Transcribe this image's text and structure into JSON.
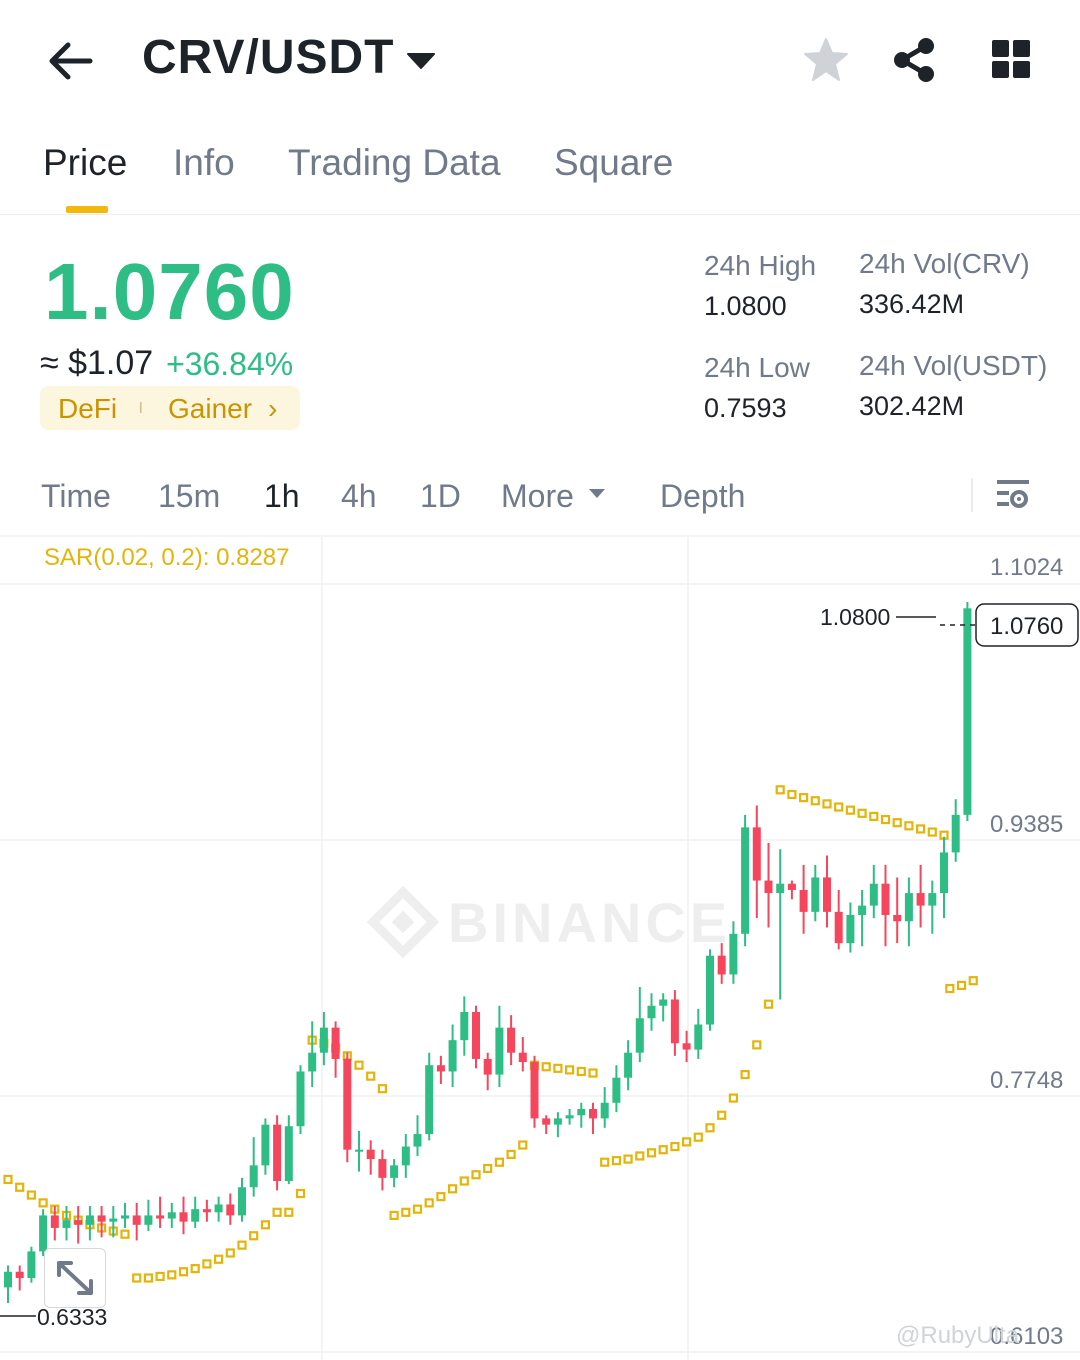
{
  "header": {
    "pair": "CRV/USDT",
    "icons": [
      "back-arrow-icon",
      "caret-down-icon",
      "star-icon",
      "share-icon",
      "grid-icon"
    ]
  },
  "tabs": [
    {
      "label": "Price",
      "active": true
    },
    {
      "label": "Info",
      "active": false
    },
    {
      "label": "Trading Data",
      "active": false
    },
    {
      "label": "Square",
      "active": false
    }
  ],
  "ticker": {
    "last_price": "1.0760",
    "usd_price": "≈ $1.07",
    "change_pct": "+36.84%",
    "tags": [
      "DeFi",
      "Gainer"
    ],
    "tag_chevron": "›",
    "stats": {
      "high_label": "24h High",
      "high_value": "1.0800",
      "low_label": "24h Low",
      "low_value": "0.7593",
      "vol_crv_label": "24h Vol(CRV)",
      "vol_crv_value": "336.42M",
      "vol_usdt_label": "24h Vol(USDT)",
      "vol_usdt_value": "302.42M"
    }
  },
  "intervals": [
    {
      "label": "Time",
      "active": false
    },
    {
      "label": "15m",
      "active": false
    },
    {
      "label": "1h",
      "active": true
    },
    {
      "label": "4h",
      "active": false
    },
    {
      "label": "1D",
      "active": false
    },
    {
      "label": "More",
      "active": false
    },
    {
      "label": "Depth",
      "active": false
    }
  ],
  "colors": {
    "up": "#2ebd85",
    "down": "#f6465d",
    "sar": "#e5b40b",
    "accent": "#f0b90b"
  },
  "chart_data": {
    "type": "candlestick",
    "indicator_label": "SAR(0.02, 0.2): 0.8287",
    "y_ticks": [
      "1.1024",
      "0.9385",
      "0.7748",
      "0.6103"
    ],
    "y_min_data": 0.6103,
    "y_max_data": 1.1024,
    "high_marker": "1.0800",
    "current_price_label": "1.0760",
    "low_marker": "0.6333",
    "watermark": "BINANCE",
    "credit": "@RubyUlta",
    "candles": [
      [
        0.642,
        0.652,
        0.632,
        0.656
      ],
      [
        0.652,
        0.648,
        0.64,
        0.656
      ],
      [
        0.648,
        0.665,
        0.645,
        0.668
      ],
      [
        0.665,
        0.688,
        0.662,
        0.692
      ],
      [
        0.688,
        0.68,
        0.672,
        0.694
      ],
      [
        0.68,
        0.685,
        0.672,
        0.694
      ],
      [
        0.685,
        0.682,
        0.67,
        0.694
      ],
      [
        0.682,
        0.688,
        0.672,
        0.694
      ],
      [
        0.688,
        0.684,
        0.674,
        0.694
      ],
      [
        0.684,
        0.686,
        0.674,
        0.694
      ],
      [
        0.686,
        0.688,
        0.68,
        0.696
      ],
      [
        0.688,
        0.682,
        0.672,
        0.696
      ],
      [
        0.682,
        0.688,
        0.678,
        0.698
      ],
      [
        0.688,
        0.686,
        0.68,
        0.7
      ],
      [
        0.686,
        0.69,
        0.68,
        0.696
      ],
      [
        0.69,
        0.684,
        0.676,
        0.7
      ],
      [
        0.684,
        0.692,
        0.68,
        0.7
      ],
      [
        0.692,
        0.69,
        0.684,
        0.698
      ],
      [
        0.69,
        0.695,
        0.684,
        0.7
      ],
      [
        0.695,
        0.688,
        0.682,
        0.702
      ],
      [
        0.688,
        0.706,
        0.684,
        0.712
      ],
      [
        0.706,
        0.72,
        0.7,
        0.738
      ],
      [
        0.72,
        0.746,
        0.714,
        0.75
      ],
      [
        0.746,
        0.71,
        0.704,
        0.752
      ],
      [
        0.71,
        0.745,
        0.708,
        0.752
      ],
      [
        0.745,
        0.78,
        0.74,
        0.784
      ],
      [
        0.78,
        0.792,
        0.77,
        0.812
      ],
      [
        0.792,
        0.808,
        0.784,
        0.818
      ],
      [
        0.808,
        0.788,
        0.776,
        0.812
      ],
      [
        0.788,
        0.73,
        0.722,
        0.792
      ],
      [
        0.73,
        0.73,
        0.716,
        0.742
      ],
      [
        0.73,
        0.724,
        0.714,
        0.736
      ],
      [
        0.724,
        0.712,
        0.704,
        0.73
      ],
      [
        0.712,
        0.72,
        0.706,
        0.724
      ],
      [
        0.72,
        0.732,
        0.712,
        0.74
      ],
      [
        0.732,
        0.74,
        0.726,
        0.752
      ],
      [
        0.74,
        0.784,
        0.736,
        0.792
      ],
      [
        0.784,
        0.78,
        0.772,
        0.79
      ],
      [
        0.78,
        0.8,
        0.77,
        0.81
      ],
      [
        0.8,
        0.818,
        0.79,
        0.828
      ],
      [
        0.818,
        0.788,
        0.782,
        0.822
      ],
      [
        0.788,
        0.778,
        0.768,
        0.792
      ],
      [
        0.778,
        0.808,
        0.77,
        0.822
      ],
      [
        0.808,
        0.792,
        0.784,
        0.816
      ],
      [
        0.792,
        0.786,
        0.78,
        0.802
      ],
      [
        0.786,
        0.75,
        0.744,
        0.79
      ],
      [
        0.75,
        0.746,
        0.74,
        0.752
      ],
      [
        0.746,
        0.75,
        0.738,
        0.754
      ],
      [
        0.75,
        0.752,
        0.746,
        0.756
      ],
      [
        0.752,
        0.756,
        0.744,
        0.76
      ],
      [
        0.756,
        0.75,
        0.74,
        0.76
      ],
      [
        0.75,
        0.76,
        0.744,
        0.77
      ],
      [
        0.76,
        0.776,
        0.754,
        0.784
      ],
      [
        0.776,
        0.792,
        0.768,
        0.8
      ],
      [
        0.792,
        0.814,
        0.786,
        0.834
      ],
      [
        0.814,
        0.822,
        0.806,
        0.83
      ],
      [
        0.822,
        0.826,
        0.812,
        0.83
      ],
      [
        0.826,
        0.798,
        0.79,
        0.832
      ],
      [
        0.798,
        0.794,
        0.786,
        0.806
      ],
      [
        0.794,
        0.81,
        0.788,
        0.82
      ],
      [
        0.81,
        0.854,
        0.806,
        0.858
      ],
      [
        0.854,
        0.842,
        0.836,
        0.862
      ],
      [
        0.842,
        0.868,
        0.836,
        0.876
      ],
      [
        0.868,
        0.936,
        0.86,
        0.944
      ],
      [
        0.936,
        0.902,
        0.878,
        0.95
      ],
      [
        0.902,
        0.894,
        0.872,
        0.926
      ],
      [
        0.894,
        0.9,
        0.826,
        0.922
      ],
      [
        0.9,
        0.896,
        0.89,
        0.902
      ],
      [
        0.896,
        0.882,
        0.868,
        0.912
      ],
      [
        0.882,
        0.904,
        0.876,
        0.912
      ],
      [
        0.904,
        0.882,
        0.872,
        0.918
      ],
      [
        0.882,
        0.862,
        0.858,
        0.896
      ],
      [
        0.862,
        0.88,
        0.856,
        0.888
      ],
      [
        0.88,
        0.886,
        0.86,
        0.896
      ],
      [
        0.886,
        0.9,
        0.878,
        0.912
      ],
      [
        0.9,
        0.88,
        0.86,
        0.912
      ],
      [
        0.88,
        0.876,
        0.862,
        0.904
      ],
      [
        0.876,
        0.894,
        0.86,
        0.904
      ],
      [
        0.894,
        0.886,
        0.872,
        0.912
      ],
      [
        0.886,
        0.894,
        0.868,
        0.902
      ],
      [
        0.894,
        0.92,
        0.878,
        0.93
      ],
      [
        0.92,
        0.944,
        0.914,
        0.954
      ],
      [
        0.944,
        1.076,
        0.94,
        1.08
      ]
    ],
    "sar": [
      [
        0,
        0.711
      ],
      [
        1,
        0.706
      ],
      [
        2,
        0.701
      ],
      [
        3,
        0.696
      ],
      [
        4,
        0.692
      ],
      [
        5,
        0.688
      ],
      [
        6,
        0.685
      ],
      [
        7,
        0.682
      ],
      [
        8,
        0.68
      ],
      [
        9,
        0.678
      ],
      [
        10,
        0.676
      ],
      [
        11,
        0.648
      ],
      [
        12,
        0.648
      ],
      [
        13,
        0.649
      ],
      [
        14,
        0.65
      ],
      [
        15,
        0.652
      ],
      [
        16,
        0.654
      ],
      [
        17,
        0.657
      ],
      [
        18,
        0.66
      ],
      [
        19,
        0.664
      ],
      [
        20,
        0.669
      ],
      [
        21,
        0.675
      ],
      [
        22,
        0.682
      ],
      [
        23,
        0.69
      ],
      [
        24,
        0.69
      ],
      [
        25,
        0.702
      ],
      [
        26,
        0.8
      ],
      [
        27,
        0.798
      ],
      [
        28,
        0.795
      ],
      [
        29,
        0.79
      ],
      [
        30,
        0.784
      ],
      [
        31,
        0.777
      ],
      [
        32,
        0.769
      ],
      [
        33,
        0.688
      ],
      [
        34,
        0.69
      ],
      [
        35,
        0.692
      ],
      [
        36,
        0.696
      ],
      [
        37,
        0.7
      ],
      [
        38,
        0.705
      ],
      [
        39,
        0.71
      ],
      [
        40,
        0.714
      ],
      [
        41,
        0.718
      ],
      [
        42,
        0.722
      ],
      [
        43,
        0.727
      ],
      [
        44,
        0.733
      ],
      [
        45,
        0.784
      ],
      [
        46,
        0.783
      ],
      [
        47,
        0.782
      ],
      [
        48,
        0.781
      ],
      [
        49,
        0.78
      ],
      [
        50,
        0.779
      ],
      [
        51,
        0.722
      ],
      [
        52,
        0.723
      ],
      [
        53,
        0.724
      ],
      [
        54,
        0.726
      ],
      [
        55,
        0.728
      ],
      [
        56,
        0.73
      ],
      [
        57,
        0.732
      ],
      [
        58,
        0.735
      ],
      [
        59,
        0.738
      ],
      [
        60,
        0.744
      ],
      [
        61,
        0.752
      ],
      [
        62,
        0.763
      ],
      [
        63,
        0.778
      ],
      [
        64,
        0.797
      ],
      [
        65,
        0.823
      ],
      [
        66,
        0.96
      ],
      [
        67,
        0.957
      ],
      [
        68,
        0.955
      ],
      [
        69,
        0.953
      ],
      [
        70,
        0.951
      ],
      [
        71,
        0.949
      ],
      [
        72,
        0.947
      ],
      [
        73,
        0.945
      ],
      [
        74,
        0.943
      ],
      [
        75,
        0.941
      ],
      [
        76,
        0.939
      ],
      [
        77,
        0.937
      ],
      [
        78,
        0.935
      ],
      [
        79,
        0.933
      ],
      [
        80,
        0.931
      ],
      [
        80.5,
        0.833
      ],
      [
        81.5,
        0.835
      ],
      [
        82.5,
        0.838
      ]
    ]
  }
}
